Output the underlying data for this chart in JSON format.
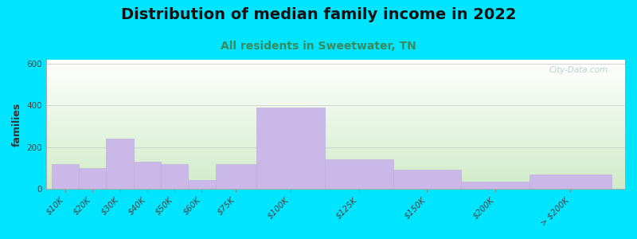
{
  "title": "Distribution of median family income in 2022",
  "subtitle": "All residents in Sweetwater, TN",
  "ylabel": "families",
  "categories": [
    "$10K",
    "$20K",
    "$30K",
    "$40K",
    "$50K",
    "$60K",
    "$75K",
    "$100K",
    "$125K",
    "$150K",
    "$200K",
    "> $200K"
  ],
  "values": [
    120,
    100,
    240,
    130,
    120,
    40,
    120,
    390,
    140,
    90,
    35,
    70
  ],
  "bar_lefts": [
    0,
    10,
    20,
    30,
    40,
    50,
    60,
    75,
    100,
    125,
    150,
    175
  ],
  "bar_widths": [
    10,
    10,
    10,
    10,
    10,
    10,
    15,
    25,
    25,
    25,
    25,
    30
  ],
  "bar_color": "#c9b8e8",
  "bar_edgecolor": "#c0b0dc",
  "ylim": [
    0,
    620
  ],
  "yticks": [
    0,
    200,
    400,
    600
  ],
  "bg_outer": "#00e5ff",
  "bg_top": "#f0f8f0",
  "bg_bottom": "#d8efd0",
  "title_fontsize": 14,
  "subtitle_fontsize": 10,
  "subtitle_color": "#3a8a5a",
  "ylabel_fontsize": 9,
  "tick_fontsize": 7.5,
  "watermark": "City-Data.com",
  "watermark_color": "#b0c8c8"
}
